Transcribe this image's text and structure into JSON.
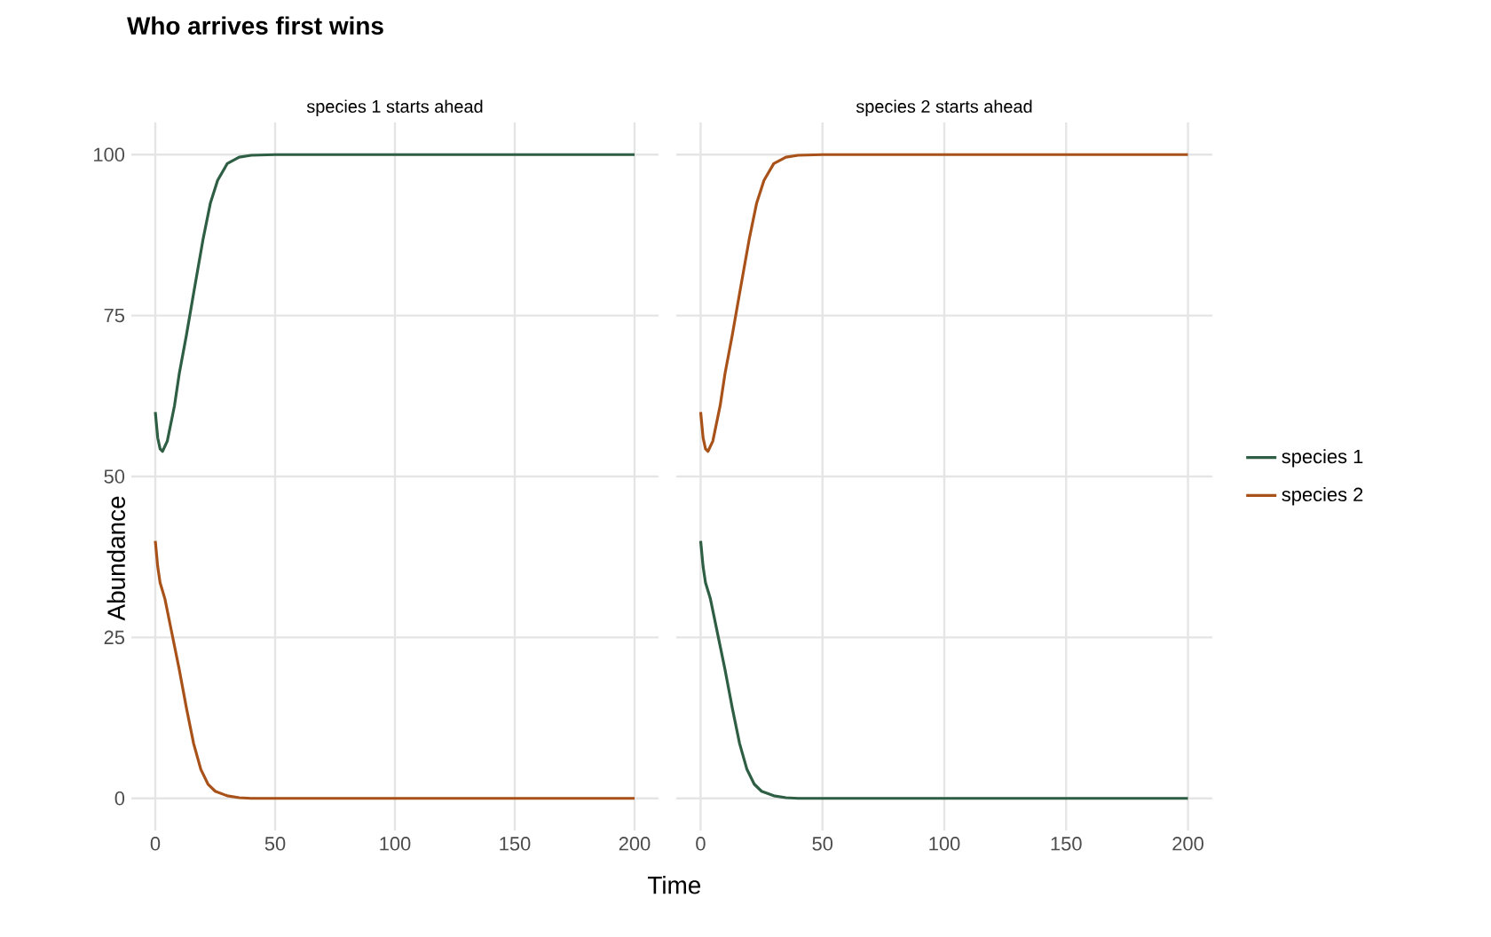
{
  "chart_data": [
    {
      "type": "line",
      "title": "Who arrives first wins",
      "subtitle": "species 1 starts ahead",
      "xlabel": "Time",
      "ylabel": "Abundance",
      "series": [
        {
          "color": "#2e5e43",
          "x": [
            0,
            1,
            2,
            3,
            5,
            8,
            10,
            13,
            16,
            20,
            23,
            26,
            30,
            35,
            40,
            50,
            100,
            150,
            200
          ],
          "values": [
            60,
            56,
            54.3,
            53.9,
            55.5,
            61,
            66,
            72,
            78.5,
            87,
            92.5,
            96,
            98.6,
            99.6,
            99.9,
            100,
            100,
            100,
            100
          ]
        },
        {
          "color": "#a8521a",
          "x": [
            0,
            1,
            2,
            4,
            7,
            10,
            13,
            16,
            19,
            22,
            25,
            30,
            35,
            40,
            50,
            100,
            150,
            200
          ],
          "values": [
            40,
            36,
            33.5,
            31,
            25.5,
            20,
            14,
            8.5,
            4.5,
            2.2,
            1.1,
            0.4,
            0.1,
            0,
            0,
            0,
            0,
            0
          ]
        }
      ],
      "xlim": [
        -10,
        210
      ],
      "ylim": [
        -5,
        105
      ],
      "xticks": [
        0,
        50,
        100,
        150,
        200
      ],
      "yticks": [
        0,
        25,
        50,
        75,
        100
      ],
      "grid": true,
      "legend": false
    },
    {
      "type": "line",
      "subtitle": "species 2 starts ahead",
      "series": [
        {
          "name": "species 1",
          "color": "#2e5e43",
          "x": [
            0,
            1,
            2,
            4,
            7,
            10,
            13,
            16,
            19,
            22,
            25,
            30,
            35,
            40,
            50,
            100,
            150,
            200
          ],
          "values": [
            40,
            36,
            33.5,
            31,
            25.5,
            20,
            14,
            8.5,
            4.5,
            2.2,
            1.1,
            0.4,
            0.1,
            0,
            0,
            0,
            0,
            0
          ]
        },
        {
          "name": "species 2",
          "color": "#a8521a",
          "x": [
            0,
            1,
            2,
            3,
            5,
            8,
            10,
            13,
            16,
            20,
            23,
            26,
            30,
            35,
            40,
            50,
            100,
            150,
            200
          ],
          "values": [
            60,
            56,
            54.3,
            53.9,
            55.5,
            61,
            66,
            72,
            78.5,
            87,
            92.5,
            96,
            98.6,
            99.6,
            99.9,
            100,
            100,
            100,
            100
          ]
        }
      ],
      "xlim": [
        -10,
        210
      ],
      "ylim": [
        -5,
        105
      ],
      "xticks": [
        0,
        50,
        100,
        150,
        200
      ],
      "yticks": [
        0,
        25,
        50,
        75,
        100
      ],
      "grid": true,
      "legend": "right",
      "tick_labels": "x"
    }
  ]
}
